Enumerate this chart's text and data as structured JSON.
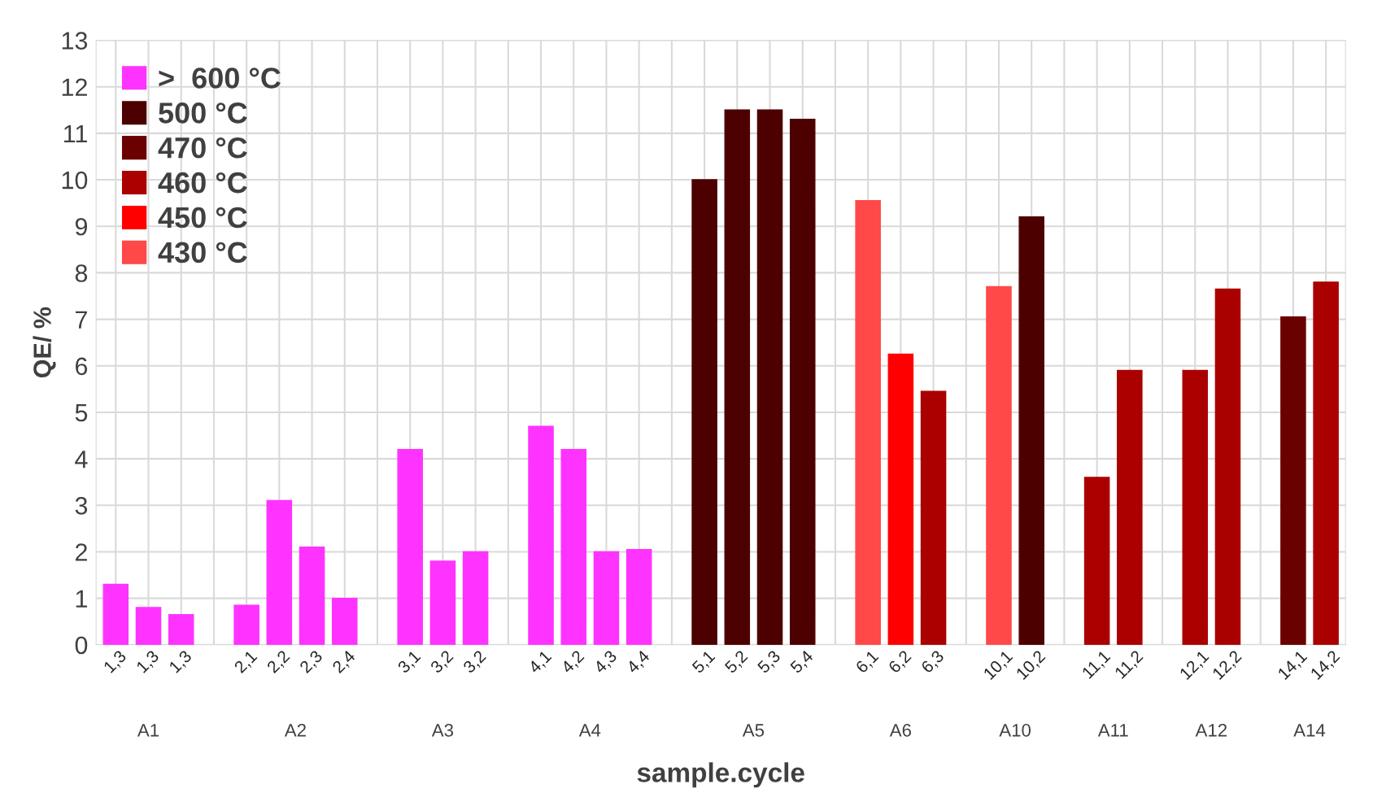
{
  "chart_data": {
    "type": "bar",
    "xlabel": "sample.cycle",
    "ylabel": "QE/ %",
    "categories": [
      "1,3",
      "1,3",
      "1,3",
      null,
      "2,1",
      "2,2",
      "2,3",
      "2,4",
      null,
      "3,1",
      "3,2",
      "3,2",
      null,
      "4,1",
      "4,2",
      "4,3",
      "4,4",
      null,
      "5,1",
      "5,2",
      "5,3",
      "5,4",
      null,
      "6,1",
      "6,2",
      "6,3",
      null,
      "10,1",
      "10,2",
      null,
      "11,1",
      "11,2",
      null,
      "12,1",
      "12,2",
      null,
      "14,1",
      "14,2"
    ],
    "series": [
      {
        "name": ">  600 °C",
        "color": "#ff33ff",
        "values": [
          1.3,
          0.8,
          0.65,
          null,
          0.85,
          3.1,
          2.1,
          1.0,
          null,
          4.2,
          1.8,
          2.0,
          null,
          4.7,
          4.2,
          2.0,
          2.05,
          null,
          null,
          null,
          null,
          null,
          null,
          null,
          null,
          null,
          null,
          null,
          null,
          null,
          null,
          null,
          null,
          null,
          null,
          null,
          null,
          null
        ]
      },
      {
        "name": "500 °C",
        "color": "#4d0000",
        "values": [
          null,
          null,
          null,
          null,
          null,
          null,
          null,
          null,
          null,
          null,
          null,
          null,
          null,
          null,
          null,
          null,
          null,
          null,
          10.0,
          11.5,
          11.5,
          11.3,
          null,
          null,
          null,
          null,
          null,
          null,
          9.2,
          null,
          null,
          null,
          null,
          null,
          null,
          null,
          null,
          null
        ]
      },
      {
        "name": "470 °C",
        "color": "#6b0000",
        "values": [
          null,
          null,
          null,
          null,
          null,
          null,
          null,
          null,
          null,
          null,
          null,
          null,
          null,
          null,
          null,
          null,
          null,
          null,
          null,
          null,
          null,
          null,
          null,
          null,
          null,
          null,
          null,
          null,
          null,
          null,
          null,
          null,
          null,
          null,
          null,
          null,
          7.05,
          null
        ]
      },
      {
        "name": "460 °C",
        "color": "#aa0000",
        "values": [
          null,
          null,
          null,
          null,
          null,
          null,
          null,
          null,
          null,
          null,
          null,
          null,
          null,
          null,
          null,
          null,
          null,
          null,
          null,
          null,
          null,
          null,
          null,
          null,
          null,
          5.45,
          null,
          null,
          null,
          null,
          3.6,
          5.9,
          null,
          5.9,
          7.65,
          null,
          null,
          7.8
        ]
      },
      {
        "name": "450 °C",
        "color": "#ff0000",
        "values": [
          null,
          null,
          null,
          null,
          null,
          null,
          null,
          null,
          null,
          null,
          null,
          null,
          null,
          null,
          null,
          null,
          null,
          null,
          null,
          null,
          null,
          null,
          null,
          null,
          6.25,
          null,
          null,
          null,
          null,
          null,
          null,
          null,
          null,
          null,
          null,
          null,
          null,
          null
        ]
      },
      {
        "name": "430 °C",
        "color": "#ff4848",
        "values": [
          null,
          null,
          null,
          null,
          null,
          null,
          null,
          null,
          null,
          null,
          null,
          null,
          null,
          null,
          null,
          null,
          null,
          null,
          null,
          null,
          null,
          null,
          null,
          9.55,
          null,
          null,
          null,
          7.7,
          null,
          null,
          null,
          null,
          null,
          null,
          null,
          null,
          null,
          null
        ]
      }
    ],
    "annotations": [
      "A1",
      "A2",
      "A3",
      "A4",
      "A5",
      "A6",
      "A10",
      "A11",
      "A12",
      "A14"
    ],
    "ylim": [
      0,
      13
    ],
    "yticks": [
      0,
      1,
      2,
      3,
      4,
      5,
      6,
      7,
      8,
      9,
      10,
      11,
      12,
      13
    ],
    "grid": true,
    "legend": "top left"
  }
}
